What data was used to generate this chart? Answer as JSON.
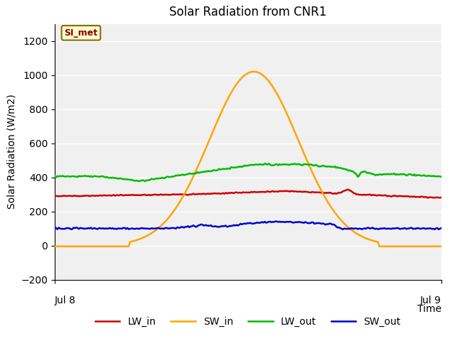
{
  "title": "Solar Radiation from CNR1",
  "xlabel": "Time",
  "ylabel": "Solar Radiation (W/m2)",
  "xlim": [
    0,
    1
  ],
  "ylim": [
    -200,
    1300
  ],
  "yticks": [
    -200,
    0,
    200,
    400,
    600,
    800,
    1000,
    1200
  ],
  "xtick_labels": [
    "Jul 8",
    "Jul 9"
  ],
  "xtick_positions": [
    0.0,
    1.0
  ],
  "annotation_text": "SI_met",
  "annotation_color": "#8B0000",
  "annotation_bg": "#FFFFCC",
  "annotation_border": "#8B6914",
  "plot_bg_color": "#F0F0F0",
  "colors": {
    "LW_in": "#CC0000",
    "SW_in": "#FFA500",
    "LW_out": "#00BB00",
    "SW_out": "#0000CC"
  },
  "line_width": 1.8,
  "n_points": 288
}
